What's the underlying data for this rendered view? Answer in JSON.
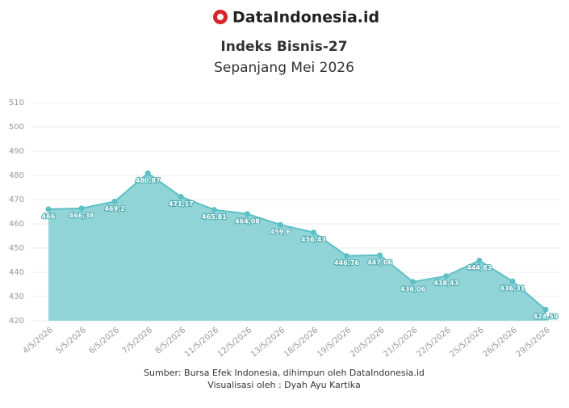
{
  "chart_data": {
    "type": "area",
    "brand": "DataIndonesia.id",
    "title": "Indeks Bisnis-27",
    "subtitle": "Sepanjang Mei 2026",
    "source": "Sumber: Bursa Efek Indonesia, dihimpun oleh DataIndonesia.id",
    "credit": "Visualisasi oleh : Dyah Ayu Kartika",
    "categories": [
      "4/5/2026",
      "5/5/2026",
      "6/5/2026",
      "7/5/2026",
      "8/5/2026",
      "11/5/2026",
      "12/5/2026",
      "13/5/2026",
      "18/5/2026",
      "19/5/2026",
      "20/5/2026",
      "21/5/2026",
      "22/5/2026",
      "25/5/2026",
      "26/5/2026",
      "29/5/2026"
    ],
    "values": [
      466,
      466.38,
      469.2,
      480.87,
      471.17,
      465.81,
      464.08,
      459.6,
      456.43,
      446.76,
      447.06,
      436.06,
      438.43,
      444.83,
      436.31,
      424.59
    ],
    "value_labels": [
      "466",
      "466,38",
      "469,2",
      "480,87",
      "471,17",
      "465,81",
      "464,08",
      "459,6",
      "456,43",
      "446,76",
      "447,06",
      "436,06",
      "438,43",
      "444,83",
      "436,31",
      "424,59"
    ],
    "color": "#5cc0c5",
    "fill_color": "#91d4d7",
    "ylim": [
      420,
      510
    ],
    "yticks": [
      420,
      430,
      440,
      450,
      460,
      470,
      480,
      490,
      500,
      510
    ],
    "grid": true
  }
}
